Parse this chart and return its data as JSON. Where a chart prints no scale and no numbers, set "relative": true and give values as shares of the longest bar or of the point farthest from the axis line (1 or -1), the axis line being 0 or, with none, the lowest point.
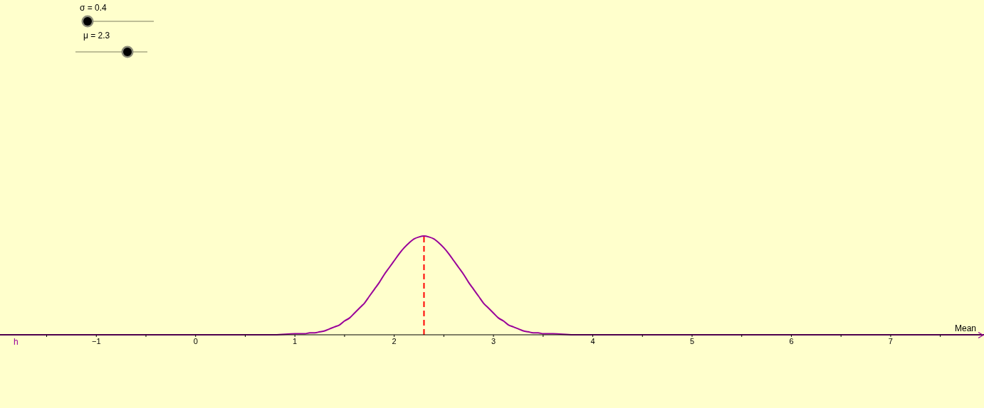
{
  "chart_data": {
    "type": "line",
    "xlabel": "Mean",
    "annotations": [
      "σ = 0.4",
      "μ = 2.3",
      "h"
    ],
    "relative": true,
    "xlim": [
      -1.97,
      7.94
    ],
    "xticks": [
      {
        "value": -1.5,
        "label": null
      },
      {
        "value": -1,
        "label": "−1"
      },
      {
        "value": -0.5,
        "label": null
      },
      0,
      {
        "value": 0.5,
        "label": null
      },
      1,
      {
        "value": 1.5,
        "label": null
      },
      2,
      {
        "value": 2.5,
        "label": null
      },
      3,
      {
        "value": 3.5,
        "label": null
      },
      4,
      {
        "value": 4.5,
        "label": null
      },
      5,
      {
        "value": 5.5,
        "label": null
      },
      6,
      {
        "value": 6.5,
        "label": null
      },
      7,
      {
        "value": 7.5,
        "label": null
      }
    ],
    "x": [
      -1.97,
      0.8,
      1.0,
      1.1,
      1.15,
      1.2,
      1.25,
      1.3,
      1.35,
      1.4,
      1.45,
      1.5,
      1.55,
      1.6,
      1.65,
      1.7,
      1.75,
      1.8,
      1.85,
      1.9,
      1.95,
      2.0,
      2.05,
      2.1,
      2.15,
      2.2,
      2.25,
      2.3,
      2.35,
      2.4,
      2.45,
      2.5,
      2.55,
      2.6,
      2.65,
      2.7,
      2.75,
      2.8,
      2.85,
      2.9,
      2.95,
      3.0,
      3.05,
      3.1,
      3.15,
      3.2,
      3.25,
      3.3,
      3.35,
      3.4,
      3.45,
      3.5,
      3.6,
      3.8,
      7.94
    ],
    "series": [
      {
        "color": "#990099",
        "values": [
          0,
          0,
          0.01,
          0.01,
          0.02,
          0.02,
          0.03,
          0.04,
          0.06,
          0.08,
          0.1,
          0.14,
          0.17,
          0.22,
          0.27,
          0.32,
          0.39,
          0.46,
          0.53,
          0.61,
          0.68,
          0.75,
          0.82,
          0.88,
          0.93,
          0.97,
          0.99,
          1,
          0.99,
          0.97,
          0.93,
          0.88,
          0.82,
          0.75,
          0.68,
          0.61,
          0.53,
          0.46,
          0.39,
          0.32,
          0.27,
          0.22,
          0.17,
          0.14,
          0.1,
          0.08,
          0.06,
          0.04,
          0.03,
          0.02,
          0.02,
          0.01,
          0.01,
          0,
          0
        ]
      }
    ],
    "ref_lines": [
      {
        "axis": "x",
        "value": 2.3,
        "color": "#ff0000",
        "line_style": "dashed"
      }
    ]
  }
}
